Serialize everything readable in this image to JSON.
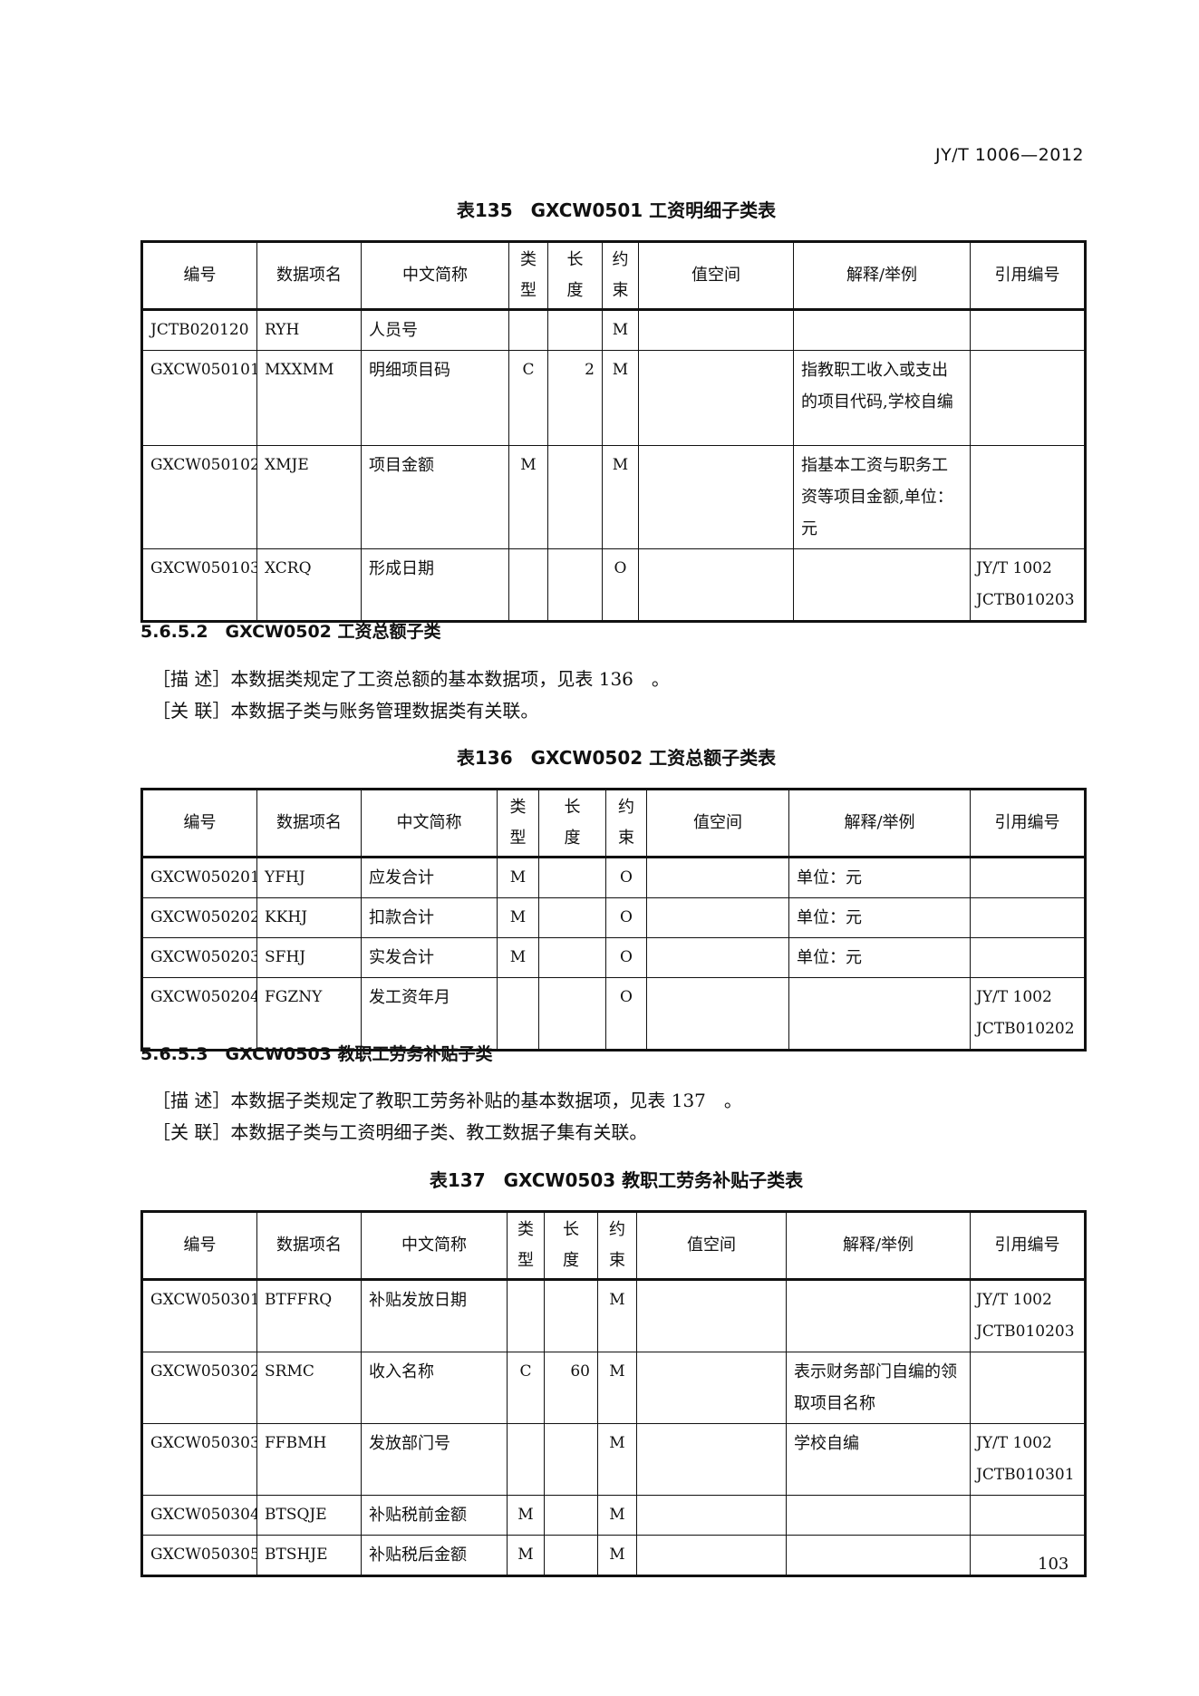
{
  "header": "JY/T 1006—2012",
  "headers": [
    "编号",
    "数据项名",
    "中文简称",
    "类\n型",
    "长\n度",
    "约\n束",
    "值空间",
    "解释/举例",
    "引用编号"
  ],
  "tables": [
    {
      "title": "表135　GXCW0501 工资明细子类表",
      "rows": [
        [
          "JCTB020120",
          "RYH",
          "人员号",
          "",
          "",
          "M",
          "",
          "",
          ""
        ],
        [
          "GXCW050101",
          "MXXMM",
          "明细项目码",
          "C",
          "2",
          "M",
          "",
          "指教职工收入或支出的项目代码,学校自编",
          ""
        ],
        [
          "GXCW050102",
          "XMJE",
          "项目金额",
          "M",
          "",
          "M",
          "",
          "指基本工资与职务工资等项目金额,单位：元",
          ""
        ],
        [
          "GXCW050103",
          "XCRQ",
          "形成日期",
          "",
          "",
          "O",
          "",
          "",
          "JY/T 1002 JCTB010203"
        ]
      ]
    },
    {
      "title": "表136　GXCW0502 工资总额子类表",
      "rows": [
        [
          "GXCW050201",
          "YFHJ",
          "应发合计",
          "M",
          "",
          "O",
          "",
          "单位：元",
          ""
        ],
        [
          "GXCW050202",
          "KKHJ",
          "扣款合计",
          "M",
          "",
          "O",
          "",
          "单位：元",
          ""
        ],
        [
          "GXCW050203",
          "SFHJ",
          "实发合计",
          "M",
          "",
          "O",
          "",
          "单位：元",
          ""
        ],
        [
          "GXCW050204",
          "FGZNY",
          "发工资年月",
          "",
          "",
          "O",
          "",
          "",
          "JY/T 1002 JCTB010202"
        ]
      ]
    },
    {
      "title": "表137　GXCW0503 教职工劳务补贴子类表",
      "rows": [
        [
          "GXCW050301",
          "BTFFRQ",
          "补贴发放日期",
          "",
          "",
          "M",
          "",
          "",
          "JY/T 1002 JCTB010203"
        ],
        [
          "GXCW050302",
          "SRMC",
          "收入名称",
          "C",
          "60",
          "M",
          "",
          "表示财务部门自编的领取项目名称",
          ""
        ],
        [
          "GXCW050303",
          "FFBMH",
          "发放部门号",
          "",
          "",
          "M",
          "",
          "学校自编",
          "JY/T 1002 JCTB010301"
        ],
        [
          "GXCW050304",
          "BTSQJE",
          "补贴税前金额",
          "M",
          "",
          "M",
          "",
          "",
          ""
        ],
        [
          "GXCW050305",
          "BTSHJE",
          "补贴税后金额",
          "M",
          "",
          "M",
          "",
          "",
          ""
        ]
      ]
    }
  ],
  "sections": [
    {
      "heading": "5.6.5.2　GXCW0502 工资总额子类",
      "desc": "［描 述］本数据类规定了工资总额的基本数据项，见表 136　。",
      "rel": "［关 联］本数据子类与账务管理数据类有关联。"
    },
    {
      "heading": "5.6.5.3　GXCW0503 教职工劳务补贴子类",
      "desc": "［描 述］本数据子类规定了教职工劳务补贴的基本数据项，见表 137　。",
      "rel": "［关 联］本数据子类与工资明细子类、教工数据子集有关联。"
    }
  ],
  "page_number": "103"
}
